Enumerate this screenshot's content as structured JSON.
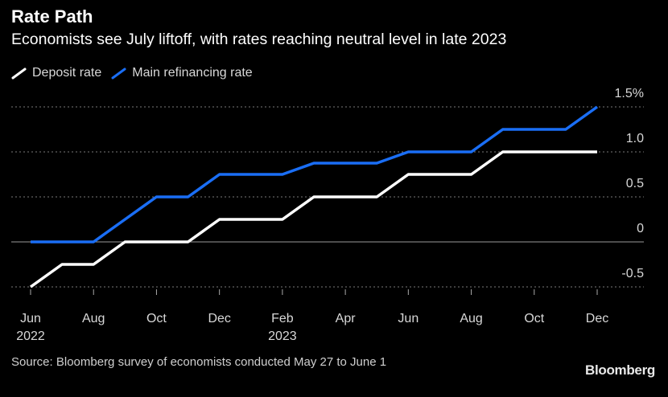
{
  "title": "Rate Path",
  "subtitle": "Economists see July liftoff, with rates reaching neutral level in late 2023",
  "source": "Source: Bloomberg survey of economists conducted May 27 to June 1",
  "brand": "Bloomberg",
  "colors": {
    "deposit": "#ffffff",
    "refi": "#1a6ef5",
    "grid": "#7a7a7a",
    "background": "#000000"
  },
  "chart_data": {
    "type": "line",
    "title": "Rate Path",
    "x_tick_labels": [
      "Jun",
      "Aug",
      "Oct",
      "Dec",
      "Feb",
      "Apr",
      "Jun",
      "Aug",
      "Oct",
      "Dec"
    ],
    "x_year_labels": [
      {
        "label": "2022",
        "month": "Jun 2022"
      },
      {
        "label": "2023",
        "month": "Feb 2023"
      }
    ],
    "y_tick_labels": [
      "1.5%",
      "1.0",
      "0.5",
      "0",
      "-0.5"
    ],
    "y_ticks": [
      1.5,
      1.0,
      0.5,
      0,
      -0.5
    ],
    "ylim": [
      -0.5,
      1.5
    ],
    "grid": true,
    "legend_position": "top-left",
    "series": [
      {
        "name": "Deposit rate",
        "color": "#ffffff",
        "x": [
          "Jun 2022",
          "Jul 2022",
          "Aug 2022",
          "Sep 2022",
          "Oct 2022",
          "Nov 2022",
          "Dec 2022",
          "Jan 2023",
          "Feb 2023",
          "Mar 2023",
          "Apr 2023",
          "May 2023",
          "Jun 2023",
          "Jul 2023",
          "Aug 2023",
          "Sep 2023",
          "Oct 2023",
          "Nov 2023",
          "Dec 2023"
        ],
        "values": [
          -0.5,
          -0.25,
          -0.25,
          0,
          0,
          0,
          0.25,
          0.25,
          0.25,
          0.5,
          0.5,
          0.5,
          0.75,
          0.75,
          0.75,
          1.0,
          1.0,
          1.0,
          1.0
        ]
      },
      {
        "name": "Main refinancing rate",
        "color": "#1a6ef5",
        "x": [
          "Jun 2022",
          "Jul 2022",
          "Aug 2022",
          "Sep 2022",
          "Oct 2022",
          "Nov 2022",
          "Dec 2022",
          "Jan 2023",
          "Feb 2023",
          "Mar 2023",
          "Apr 2023",
          "May 2023",
          "Jun 2023",
          "Jul 2023",
          "Aug 2023",
          "Sep 2023",
          "Oct 2023",
          "Nov 2023",
          "Dec 2023"
        ],
        "values": [
          0,
          0,
          0,
          0.25,
          0.5,
          0.5,
          0.75,
          0.75,
          0.75,
          0.875,
          0.875,
          0.875,
          1.0,
          1.0,
          1.0,
          1.25,
          1.25,
          1.25,
          1.5
        ]
      }
    ]
  }
}
